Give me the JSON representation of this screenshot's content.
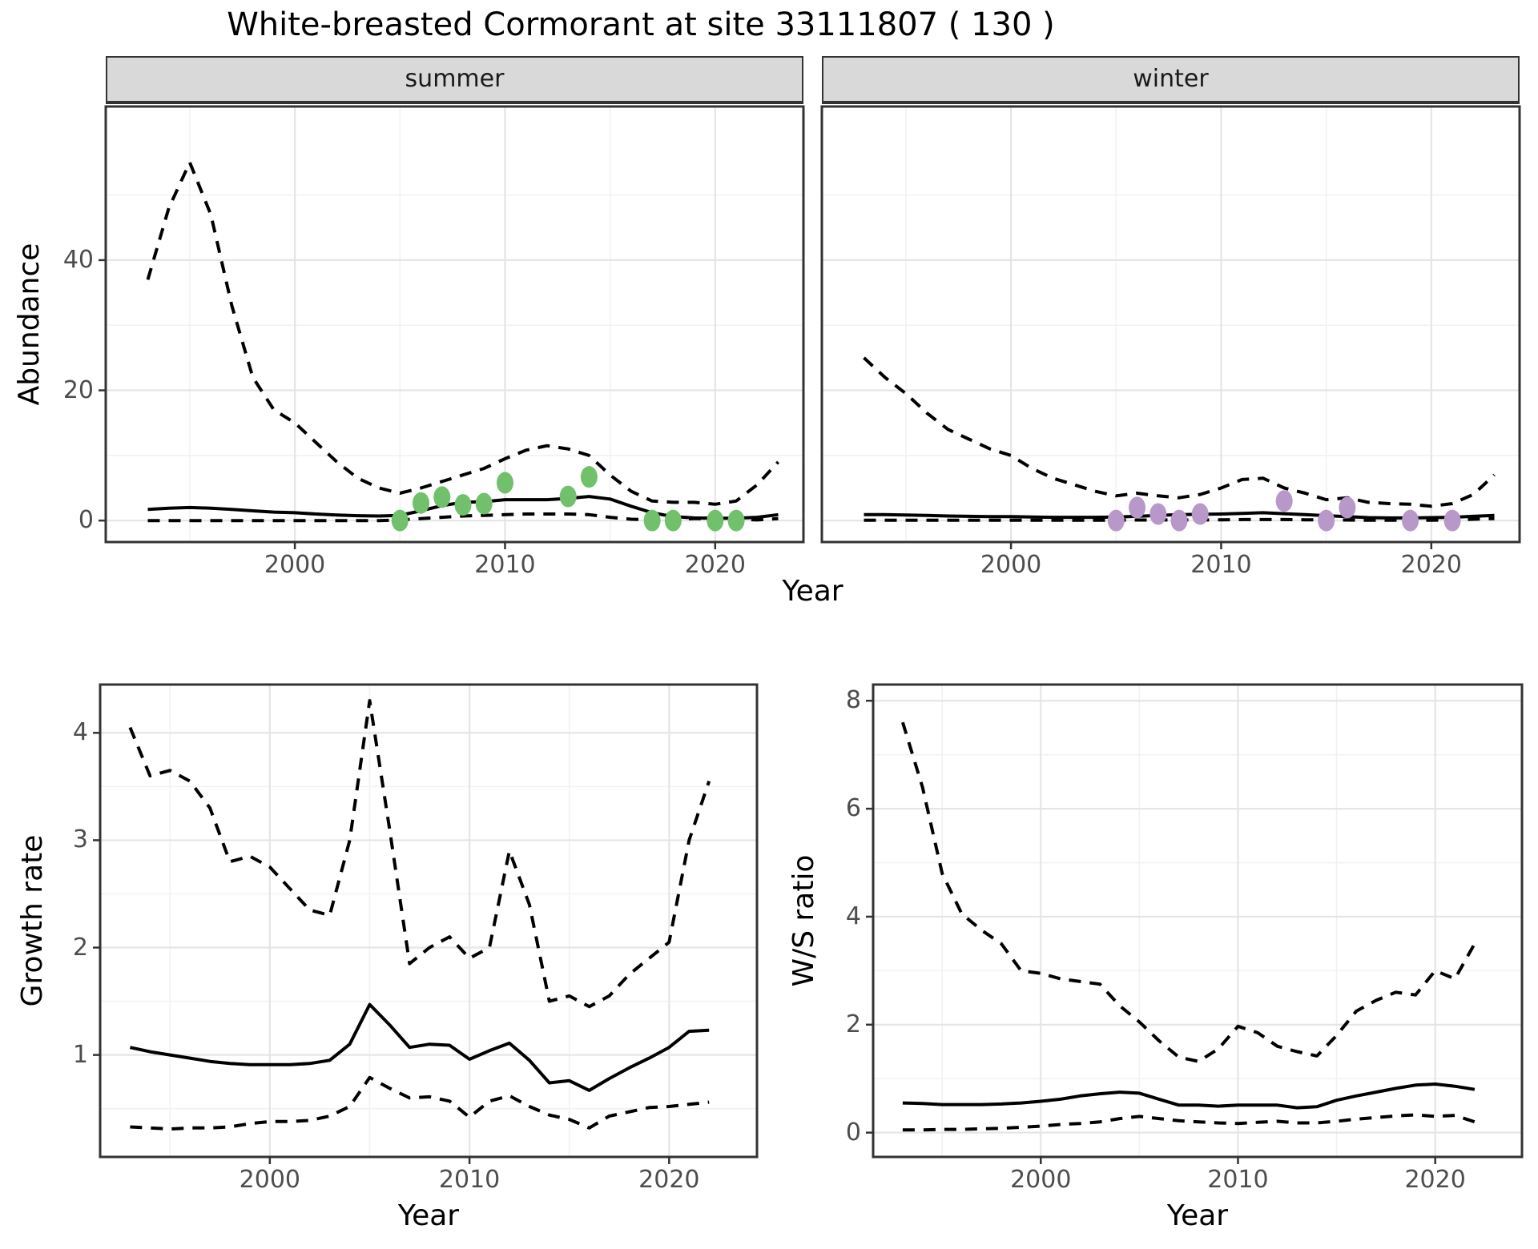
{
  "title": "White-breasted Cormorant at site 33111807 ( 130 )",
  "colors": {
    "summer_points": "#70C06C",
    "winter_points": "#B898C8",
    "line": "#000000",
    "strip_background": "#D9D9D9",
    "panel_border": "#333333",
    "grid_major": "#E5E5E5",
    "grid_minor": "#F2F2F2",
    "tick_text": "#4D4D4D"
  },
  "chart_data": [
    {
      "id": "abundance_summer",
      "type": "line",
      "facet_label": "summer",
      "xlabel": "Year",
      "ylabel": "Abundance",
      "xlim": [
        1991.0,
        2024.2
      ],
      "ylim": [
        -3.3,
        63.6
      ],
      "xticks": [
        2000,
        2010,
        2020
      ],
      "xminor": [
        1995,
        2005,
        2015
      ],
      "yticks": [
        0,
        20,
        40
      ],
      "yminor": [
        10,
        30,
        50
      ],
      "grid": true,
      "legend": "none",
      "series": [
        {
          "name": "upper_ci",
          "style": "dashed",
          "x": [
            1993,
            1994,
            1995,
            1996,
            1997,
            1998,
            1999,
            2000,
            2001,
            2002,
            2003,
            2004,
            2005,
            2006,
            2007,
            2008,
            2009,
            2010,
            2011,
            2012,
            2013,
            2014,
            2015,
            2016,
            2017,
            2018,
            2019,
            2020,
            2021,
            2022,
            2023
          ],
          "y": [
            37,
            48,
            55,
            47,
            33,
            22,
            17,
            15,
            12,
            9,
            6.5,
            5,
            4.2,
            5,
            6,
            7,
            8,
            9.5,
            10.8,
            11.5,
            11,
            10,
            7,
            4.5,
            3,
            2.8,
            2.8,
            2.5,
            3,
            5.5,
            9
          ]
        },
        {
          "name": "modelled_mean",
          "style": "solid",
          "x": [
            1993,
            1994,
            1995,
            1996,
            1997,
            1998,
            1999,
            2000,
            2001,
            2002,
            2003,
            2004,
            2005,
            2006,
            2007,
            2008,
            2009,
            2010,
            2011,
            2012,
            2013,
            2014,
            2015,
            2016,
            2017,
            2018,
            2019,
            2020,
            2021,
            2022,
            2023
          ],
          "y": [
            1.7,
            1.9,
            2.0,
            1.9,
            1.7,
            1.5,
            1.3,
            1.2,
            1.0,
            0.85,
            0.75,
            0.7,
            0.8,
            1.5,
            2.3,
            2.8,
            2.9,
            3.2,
            3.2,
            3.2,
            3.4,
            3.7,
            3.3,
            2.2,
            1.2,
            0.6,
            0.4,
            0.35,
            0.35,
            0.5,
            0.9
          ]
        },
        {
          "name": "lower_ci",
          "style": "dashed",
          "x": [
            1993,
            1994,
            1995,
            1996,
            1997,
            1998,
            1999,
            2000,
            2001,
            2002,
            2003,
            2004,
            2005,
            2006,
            2007,
            2008,
            2009,
            2010,
            2011,
            2012,
            2013,
            2014,
            2015,
            2016,
            2017,
            2018,
            2019,
            2020,
            2021,
            2022,
            2023
          ],
          "y": [
            0,
            0,
            0,
            0,
            0,
            0,
            0,
            0,
            0,
            0,
            0,
            0,
            0.1,
            0.3,
            0.5,
            0.7,
            0.8,
            0.9,
            1.0,
            1.0,
            1.0,
            0.9,
            0.5,
            0.2,
            0.1,
            0.15,
            0.3,
            0.3,
            0.2,
            0.1,
            0.3
          ]
        },
        {
          "name": "observed_counts",
          "style": "points",
          "color_key": "summer_points",
          "x": [
            2005,
            2006,
            2007,
            2008,
            2009,
            2010,
            2013,
            2014,
            2017,
            2018,
            2020,
            2021
          ],
          "y": [
            0,
            2.7,
            3.6,
            2.4,
            2.6,
            5.8,
            3.7,
            6.7,
            0,
            0,
            0,
            0
          ]
        }
      ]
    },
    {
      "id": "abundance_winter",
      "type": "line",
      "facet_label": "winter",
      "xlabel": "Year",
      "ylabel": "Abundance",
      "xlim": [
        1991.0,
        2024.2
      ],
      "ylim": [
        -3.3,
        63.6
      ],
      "xticks": [
        2000,
        2010,
        2020
      ],
      "xminor": [
        1995,
        2005,
        2015
      ],
      "yticks": [
        0,
        20,
        40
      ],
      "yminor": [
        10,
        30,
        50
      ],
      "grid": true,
      "legend": "none",
      "series": [
        {
          "name": "upper_ci",
          "style": "dashed",
          "x": [
            1993,
            1994,
            1995,
            1996,
            1997,
            1998,
            1999,
            2000,
            2001,
            2002,
            2003,
            2004,
            2005,
            2006,
            2007,
            2008,
            2009,
            2010,
            2011,
            2012,
            2013,
            2014,
            2015,
            2016,
            2017,
            2018,
            2019,
            2020,
            2021,
            2022,
            2023
          ],
          "y": [
            25,
            22,
            19.5,
            16.5,
            14,
            12.5,
            11,
            10,
            8,
            6.5,
            5.5,
            4.5,
            3.8,
            4.2,
            3.8,
            3.5,
            4,
            5,
            6.3,
            6.5,
            5,
            4.2,
            3.2,
            3.5,
            2.8,
            2.6,
            2.5,
            2.2,
            2.6,
            4,
            7
          ]
        },
        {
          "name": "modelled_mean",
          "style": "solid",
          "x": [
            1993,
            1994,
            1995,
            1996,
            1997,
            1998,
            1999,
            2000,
            2001,
            2002,
            2003,
            2004,
            2005,
            2006,
            2007,
            2008,
            2009,
            2010,
            2011,
            2012,
            2013,
            2014,
            2015,
            2016,
            2017,
            2018,
            2019,
            2020,
            2021,
            2022,
            2023
          ],
          "y": [
            0.9,
            0.9,
            0.85,
            0.8,
            0.7,
            0.65,
            0.6,
            0.6,
            0.55,
            0.5,
            0.5,
            0.5,
            0.55,
            0.65,
            0.8,
            0.9,
            0.95,
            1.0,
            1.1,
            1.2,
            1.05,
            0.9,
            0.75,
            0.6,
            0.45,
            0.4,
            0.4,
            0.45,
            0.5,
            0.65,
            0.8
          ]
        },
        {
          "name": "lower_ci",
          "style": "dashed",
          "x": [
            1993,
            1994,
            1995,
            1996,
            1997,
            1998,
            1999,
            2000,
            2001,
            2002,
            2003,
            2004,
            2005,
            2006,
            2007,
            2008,
            2009,
            2010,
            2011,
            2012,
            2013,
            2014,
            2015,
            2016,
            2017,
            2018,
            2019,
            2020,
            2021,
            2022,
            2023
          ],
          "y": [
            0.05,
            0.05,
            0.05,
            0.05,
            0.05,
            0.05,
            0.05,
            0.05,
            0.05,
            0.05,
            0.05,
            0.05,
            0.05,
            0.08,
            0.1,
            0.1,
            0.1,
            0.12,
            0.15,
            0.15,
            0.15,
            0.12,
            0.1,
            0.08,
            0.05,
            0.05,
            0.05,
            0.05,
            0.1,
            0.2,
            0.3
          ]
        },
        {
          "name": "observed_counts",
          "style": "points",
          "color_key": "winter_points",
          "x": [
            2005,
            2006,
            2007,
            2008,
            2009,
            2013,
            2015,
            2016,
            2019,
            2021
          ],
          "y": [
            0,
            2,
            1,
            0,
            1,
            3,
            0,
            2,
            0,
            0
          ]
        }
      ]
    },
    {
      "id": "growth_rate",
      "type": "line",
      "facet_label": "",
      "xlabel": "Year",
      "ylabel": "Growth rate",
      "xlim": [
        1991.5,
        2024.4
      ],
      "ylim": [
        0.05,
        4.45
      ],
      "xticks": [
        2000,
        2010,
        2020
      ],
      "xminor": [
        1995,
        2005,
        2015
      ],
      "yticks": [
        1,
        2,
        3,
        4
      ],
      "yminor": [
        0.5,
        1.5,
        2.5,
        3.5
      ],
      "grid": true,
      "legend": "none",
      "series": [
        {
          "name": "upper_ci",
          "style": "dashed",
          "x": [
            1993,
            1994,
            1995,
            1996,
            1997,
            1998,
            1999,
            2000,
            2001,
            2002,
            2003,
            2004,
            2005,
            2006,
            2007,
            2008,
            2009,
            2010,
            2011,
            2012,
            2013,
            2014,
            2015,
            2016,
            2017,
            2018,
            2019,
            2020,
            2021,
            2022
          ],
          "y": [
            4.05,
            3.6,
            3.65,
            3.55,
            3.3,
            2.8,
            2.85,
            2.75,
            2.55,
            2.35,
            2.3,
            3.0,
            4.3,
            3.1,
            1.85,
            2.0,
            2.1,
            1.9,
            2.0,
            2.9,
            2.4,
            1.5,
            1.55,
            1.45,
            1.55,
            1.75,
            1.9,
            2.05,
            3.0,
            3.55
          ]
        },
        {
          "name": "modelled_mean",
          "style": "solid",
          "x": [
            1993,
            1994,
            1995,
            1996,
            1997,
            1998,
            1999,
            2000,
            2001,
            2002,
            2003,
            2004,
            2005,
            2006,
            2007,
            2008,
            2009,
            2010,
            2011,
            2012,
            2013,
            2014,
            2015,
            2016,
            2017,
            2018,
            2019,
            2020,
            2021,
            2022
          ],
          "y": [
            1.07,
            1.03,
            1.0,
            0.97,
            0.94,
            0.92,
            0.91,
            0.91,
            0.91,
            0.92,
            0.95,
            1.1,
            1.47,
            1.28,
            1.07,
            1.1,
            1.09,
            0.96,
            1.04,
            1.11,
            0.95,
            0.74,
            0.76,
            0.67,
            0.78,
            0.88,
            0.97,
            1.07,
            1.22,
            1.23
          ]
        },
        {
          "name": "lower_ci",
          "style": "dashed",
          "x": [
            1993,
            1994,
            1995,
            1996,
            1997,
            1998,
            1999,
            2000,
            2001,
            2002,
            2003,
            2004,
            2005,
            2006,
            2007,
            2008,
            2009,
            2010,
            2011,
            2012,
            2013,
            2014,
            2015,
            2016,
            2017,
            2018,
            2019,
            2020,
            2021,
            2022
          ],
          "y": [
            0.33,
            0.32,
            0.31,
            0.32,
            0.32,
            0.33,
            0.36,
            0.38,
            0.38,
            0.39,
            0.43,
            0.52,
            0.79,
            0.69,
            0.6,
            0.61,
            0.57,
            0.42,
            0.57,
            0.62,
            0.52,
            0.44,
            0.4,
            0.32,
            0.43,
            0.47,
            0.51,
            0.52,
            0.54,
            0.56
          ]
        }
      ]
    },
    {
      "id": "ws_ratio",
      "type": "line",
      "facet_label": "",
      "xlabel": "Year",
      "ylabel": "W/S ratio",
      "xlim": [
        1991.5,
        2024.4
      ],
      "ylim": [
        -0.45,
        8.3
      ],
      "xticks": [
        2000,
        2010,
        2020
      ],
      "xminor": [
        1995,
        2005,
        2015
      ],
      "yticks": [
        0,
        2,
        4,
        6,
        8
      ],
      "yminor": [
        1,
        3,
        5,
        7
      ],
      "grid": true,
      "legend": "none",
      "series": [
        {
          "name": "upper_ci",
          "style": "dashed",
          "x": [
            1993,
            1994,
            1995,
            1996,
            1997,
            1998,
            1999,
            2000,
            2001,
            2002,
            2003,
            2004,
            2005,
            2006,
            2007,
            2008,
            2009,
            2010,
            2011,
            2012,
            2013,
            2014,
            2015,
            2016,
            2017,
            2018,
            2019,
            2020,
            2021,
            2022
          ],
          "y": [
            7.6,
            6.4,
            4.8,
            4.05,
            3.75,
            3.5,
            3.0,
            2.95,
            2.85,
            2.8,
            2.75,
            2.35,
            2.05,
            1.7,
            1.4,
            1.32,
            1.55,
            1.97,
            1.85,
            1.6,
            1.5,
            1.42,
            1.8,
            2.25,
            2.45,
            2.6,
            2.55,
            3.0,
            2.85,
            3.5
          ]
        },
        {
          "name": "modelled_mean",
          "style": "solid",
          "x": [
            1993,
            1994,
            1995,
            1996,
            1997,
            1998,
            1999,
            2000,
            2001,
            2002,
            2003,
            2004,
            2005,
            2006,
            2007,
            2008,
            2009,
            2010,
            2011,
            2012,
            2013,
            2014,
            2015,
            2016,
            2017,
            2018,
            2019,
            2020,
            2021,
            2022
          ],
          "y": [
            0.55,
            0.54,
            0.52,
            0.52,
            0.52,
            0.53,
            0.55,
            0.58,
            0.62,
            0.68,
            0.72,
            0.75,
            0.73,
            0.62,
            0.51,
            0.51,
            0.49,
            0.51,
            0.51,
            0.51,
            0.46,
            0.48,
            0.6,
            0.68,
            0.75,
            0.82,
            0.88,
            0.9,
            0.86,
            0.8
          ]
        },
        {
          "name": "lower_ci",
          "style": "dashed",
          "x": [
            1993,
            1994,
            1995,
            1996,
            1997,
            1998,
            1999,
            2000,
            2001,
            2002,
            2003,
            2004,
            2005,
            2006,
            2007,
            2008,
            2009,
            2010,
            2011,
            2012,
            2013,
            2014,
            2015,
            2016,
            2017,
            2018,
            2019,
            2020,
            2021,
            2022
          ],
          "y": [
            0.05,
            0.05,
            0.06,
            0.06,
            0.07,
            0.08,
            0.1,
            0.12,
            0.15,
            0.17,
            0.2,
            0.26,
            0.3,
            0.26,
            0.22,
            0.2,
            0.18,
            0.17,
            0.19,
            0.21,
            0.18,
            0.18,
            0.21,
            0.25,
            0.28,
            0.31,
            0.33,
            0.3,
            0.32,
            0.2
          ]
        }
      ]
    }
  ]
}
